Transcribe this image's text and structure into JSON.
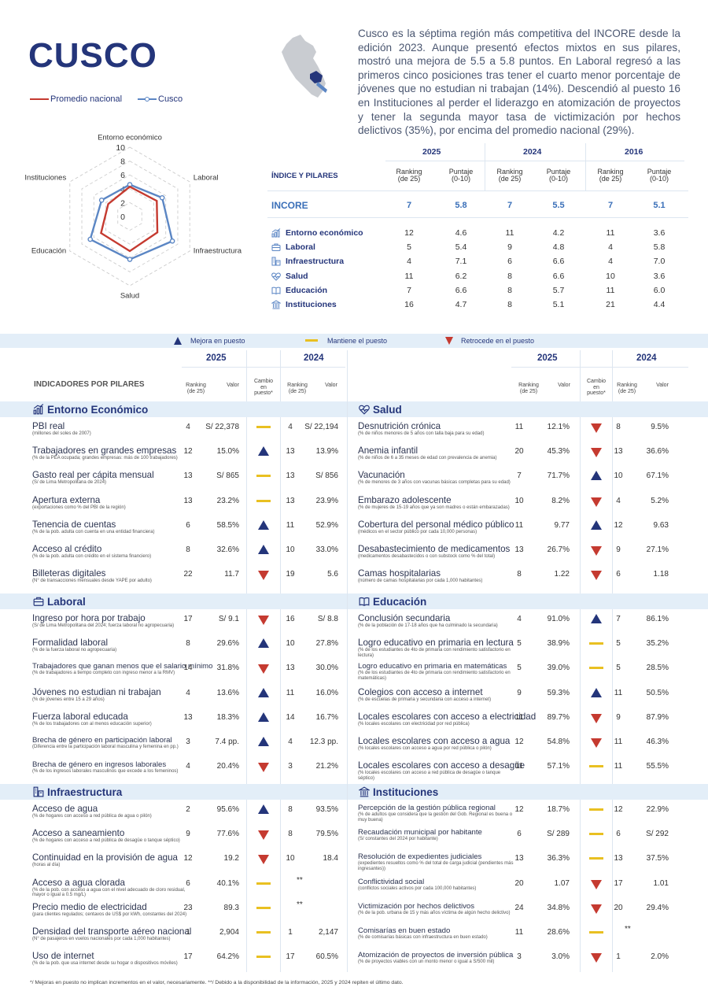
{
  "title": "CUSCO",
  "intro": "Cusco es la séptima región más competitiva del INCORE desde la edición 2023. Aunque presentó efectos mixtos en sus pilares, mostró una mejora de 5.5 a 5.8 puntos. En Laboral regresó a las primeros cinco posiciones tras tener el cuarto menor porcentaje de jóvenes que no estudian ni trabajan (14%). Descendió al puesto 16 en Instituciones al perder el liderazgo en atomización de proyectos y tener la segunda mayor tasa de victimización por hechos delictivos (35%), por encima del promedio nacional (29%).",
  "radar": {
    "legend_national": "Promedio nacional",
    "legend_region": "Cusco",
    "axes": [
      "Entorno económico",
      "Laboral",
      "Infraestructura",
      "Salud",
      "Educación",
      "Instituciones"
    ],
    "ticks": [
      "10",
      "8",
      "6",
      "4",
      "2",
      "0"
    ],
    "national": [
      4.3,
      4.5,
      4.6,
      5.0,
      4.8,
      3.6
    ],
    "region": [
      4.6,
      5.4,
      7.1,
      6.2,
      6.6,
      4.7
    ],
    "colors": {
      "national": "#c53a30",
      "region": "#5b86c4"
    }
  },
  "summary": {
    "header_label": "ÍNDICE Y PILARES",
    "years": [
      "2025",
      "2024",
      "2016"
    ],
    "col_ranking": "Ranking\n(de 25)",
    "col_puntaje": "Puntaje\n(0-10)",
    "incore": {
      "label": "INCORE",
      "values": [
        "7",
        "5.8",
        "7",
        "5.5",
        "7",
        "5.1"
      ]
    },
    "rows": [
      {
        "label": "Entorno económico",
        "icon": "chart-icon",
        "values": [
          "12",
          "4.6",
          "11",
          "4.2",
          "11",
          "3.6"
        ]
      },
      {
        "label": "Laboral",
        "icon": "briefcase-icon",
        "values": [
          "5",
          "5.4",
          "9",
          "4.8",
          "4",
          "5.8"
        ]
      },
      {
        "label": "Infraestructura",
        "icon": "building-icon",
        "values": [
          "4",
          "7.1",
          "6",
          "6.6",
          "4",
          "7.0"
        ]
      },
      {
        "label": "Salud",
        "icon": "heart-pulse-icon",
        "values": [
          "11",
          "6.2",
          "8",
          "6.6",
          "10",
          "3.6"
        ]
      },
      {
        "label": "Educación",
        "icon": "book-icon",
        "values": [
          "7",
          "6.6",
          "8",
          "5.7",
          "11",
          "6.0"
        ]
      },
      {
        "label": "Instituciones",
        "icon": "institution-icon",
        "values": [
          "16",
          "4.7",
          "8",
          "5.1",
          "21",
          "4.4"
        ]
      }
    ]
  },
  "legend": {
    "up": "Mejora en puesto",
    "same": "Mantiene el puesto",
    "down": "Retrocede en el puesto"
  },
  "table_headers": {
    "indicators": "INDICADORES POR PILARES",
    "year_a": "2025",
    "year_b": "2024",
    "ranking": "Ranking\n(de 25)",
    "valor": "Valor",
    "cambio": "Cambio\nen\npuesto*"
  },
  "left_sections": [
    {
      "title": "Entorno Económico",
      "icon": "chart-icon",
      "rows": [
        {
          "name": "PBI real",
          "sub": "(millones del soles de 2007)",
          "r25": "4",
          "v25": "S/ 22,378",
          "chg": "same",
          "r24": "4",
          "v24": "S/ 22,194"
        },
        {
          "name": "Trabajadores en grandes empresas",
          "sub": "(% de la PEA ocupada; grandes empresas: más de 100 trabajadores)",
          "r25": "12",
          "v25": "15.0%",
          "chg": "up",
          "r24": "13",
          "v24": "13.9%"
        },
        {
          "name": "Gasto real per cápita mensual",
          "sub": "(S/ de Lima Metropolitana de 2024)",
          "r25": "13",
          "v25": "S/ 865",
          "chg": "same",
          "r24": "13",
          "v24": "S/ 856"
        },
        {
          "name": "Apertura externa",
          "sub": "(exportaciones como % del PBI de la región)",
          "r25": "13",
          "v25": "23.2%",
          "chg": "same",
          "r24": "13",
          "v24": "23.9%"
        },
        {
          "name": "Tenencia de cuentas",
          "sub": " (% de la pob. adulta con cuenta en una entidad financiera)",
          "r25": "6",
          "v25": "58.5%",
          "chg": "up",
          "r24": "11",
          "v24": "52.9%"
        },
        {
          "name": "Acceso al crédito",
          "sub": "(% de la pob. adulta con crédito en el sistema financiero)",
          "r25": "8",
          "v25": "32.6%",
          "chg": "up",
          "r24": "10",
          "v24": "33.0%"
        },
        {
          "name": "Billeteras digitales",
          "sub": "(N° de transacciones mensuales desde YAPE por adulto)",
          "r25": "22",
          "v25": "11.7",
          "chg": "down",
          "r24": "19",
          "v24": "5.6"
        }
      ]
    },
    {
      "title": "Laboral",
      "icon": "briefcase-icon",
      "rows": [
        {
          "name": "Ingreso por hora por trabajo",
          "sub": "(S/ de Lima Metropolitana del 2024; fuerza laboral no agropecuaria)",
          "r25": "17",
          "v25": "S/ 9.1",
          "chg": "down",
          "r24": "16",
          "v24": "S/ 8.8"
        },
        {
          "name": "Formalidad laboral",
          "sub": "(% de la fuerza laboral no agropecuaria)",
          "r25": "8",
          "v25": "29.6%",
          "chg": "up",
          "r24": "10",
          "v24": "27.8%"
        },
        {
          "name": "Trabajadores que ganan menos que el salario mínimo",
          "sub": "(% de trabajadores a tiempo completo con ingreso menor a la RMV)",
          "r25": "14",
          "v25": "31.8%",
          "chg": "down",
          "r24": "13",
          "v24": "30.0%",
          "small": true
        },
        {
          "name": "Jóvenes no estudian ni trabajan",
          "sub": "(% de jóvenes entre 15 a 29 años)",
          "r25": "4",
          "v25": "13.6%",
          "chg": "up",
          "r24": "11",
          "v24": "16.0%"
        },
        {
          "name": "Fuerza laboral educada",
          "sub": "(% de los trabajadores con al menos educación superior)",
          "r25": "13",
          "v25": "18.3%",
          "chg": "up",
          "r24": "14",
          "v24": "16.7%"
        },
        {
          "name": "Brecha de género en participación laboral",
          "sub": "(Diferencia entre la participación laboral masculina y femenina en pp.)",
          "r25": "3",
          "v25": "7.4 pp.",
          "chg": "up",
          "r24": "4",
          "v24": "12.3 pp.",
          "small": true
        },
        {
          "name": "Brecha de género en ingresos laborales",
          "sub": "(% de los ingresos laborales masculinos que excede a los femeninos)",
          "r25": "4",
          "v25": "20.4%",
          "chg": "down",
          "r24": "3",
          "v24": "21.2%",
          "small": true
        }
      ]
    },
    {
      "title": "Infraestructura",
      "icon": "building-icon",
      "rows": [
        {
          "name": "Acceso de agua",
          "sub": "(% de hogares con acceso a red pública de agua o pilón)",
          "r25": "2",
          "v25": "95.6%",
          "chg": "up",
          "r24": "8",
          "v24": "93.5%"
        },
        {
          "name": "Acceso a saneamiento",
          "sub": "(% de hogares con acceso a red pública de desagüe o tanque séptico)",
          "r25": "9",
          "v25": "77.6%",
          "chg": "down",
          "r24": "8",
          "v24": "79.5%"
        },
        {
          "name": "Continuidad en la provisión de agua",
          "sub": "(horas al día)",
          "r25": "12",
          "v25": "19.2",
          "chg": "down",
          "r24": "10",
          "v24": "18.4"
        },
        {
          "name": "Acceso a agua clorada",
          "sub": "(% de la pob. con acceso a agua con el nivel adecuado de cloro residual, mayor o igual a 0.5 mg/L)",
          "r25": "6",
          "v25": "40.1%",
          "chg": "same",
          "r24": "",
          "v24": "**"
        },
        {
          "name": "Precio medio de electricidad",
          "sub": "(para clientes regulados; centavos de US$ por kWh, constantes del 2024)",
          "r25": "23",
          "v25": "89.3",
          "chg": "same",
          "r24": "",
          "v24": "**"
        },
        {
          "name": "Densidad del transporte aéreo nacional",
          "sub": "(N° de pasajeros en vuelos nacionales por cada 1,000 habitantes)",
          "r25": "1",
          "v25": "2,904",
          "chg": "same",
          "r24": "1",
          "v24": "2,147"
        },
        {
          "name": "Uso de internet",
          "sub": "(% de la pob. que usa internet desde su hogar o dispositivos móviles)",
          "r25": "17",
          "v25": "64.2%",
          "chg": "same",
          "r24": "17",
          "v24": "60.5%"
        }
      ]
    }
  ],
  "right_sections": [
    {
      "title": "Salud",
      "icon": "heart-pulse-icon",
      "rows": [
        {
          "name": "Desnutrición crónica",
          "sub": "(% de niños menores de 5 años con talla baja para su edad)",
          "r25": "11",
          "v25": "12.1%",
          "chg": "down",
          "r24": "8",
          "v24": "9.5%"
        },
        {
          "name": "Anemia infantil",
          "sub": " (% de niños de 6 a 35 meses de edad con prevalencia de anemia)",
          "r25": "20",
          "v25": "45.3%",
          "chg": "down",
          "r24": "13",
          "v24": "36.6%"
        },
        {
          "name": "Vacunación",
          "sub": "(% de menores de 3 años con vacunas básicas completas para su edad)",
          "r25": "7",
          "v25": "71.7%",
          "chg": "up",
          "r24": "10",
          "v24": "67.1%"
        },
        {
          "name": "Embarazo adolescente",
          "sub": "(% de mujeres de 15-19 años que ya son madres o están embarazadas)",
          "r25": "10",
          "v25": "8.2%",
          "chg": "down",
          "r24": "4",
          "v24": "5.2%"
        },
        {
          "name": "Cobertura del personal médico público",
          "sub": "(médicos en el sector público por cada 10,000 personas)",
          "r25": "11",
          "v25": "9.77",
          "chg": "up",
          "r24": "12",
          "v24": "9.63"
        },
        {
          "name": "Desabastecimiento de medicamentos",
          "sub": "(medicamentos desabastecidos o con substock como % del total)",
          "r25": "13",
          "v25": "26.7%",
          "chg": "down",
          "r24": "9",
          "v24": "27.1%"
        },
        {
          "name": "Camas hospitalarias",
          "sub": "(número de camas hospitalarias por cada 1,000 habitantes)",
          "r25": "8",
          "v25": "1.22",
          "chg": "down",
          "r24": "6",
          "v24": "1.18"
        }
      ]
    },
    {
      "title": "Educación",
      "icon": "book-icon",
      "rows": [
        {
          "name": "Conclusión secundaria",
          "sub": "(% de la población de 17-18 años que ha culminado la secundaria)",
          "r25": "4",
          "v25": "91.0%",
          "chg": "up",
          "r24": "7",
          "v24": "86.1%"
        },
        {
          "name": "Logro educativo en primaria en lectura",
          "sub": "(% de los estudiantes de 4to de primaria con rendimiento satisfactorio en lectura)",
          "r25": "5",
          "v25": "38.9%",
          "chg": "same",
          "r24": "5",
          "v24": "35.2%"
        },
        {
          "name": "Logro educativo en primaria en matemáticas",
          "sub": "(% de los estudiantes de 4to de primaria con rendimiento satisfactorio en matemáticas)",
          "r25": "5",
          "v25": "39.0%",
          "chg": "same",
          "r24": "5",
          "v24": "28.5%",
          "small": true
        },
        {
          "name": "Colegios con acceso a internet",
          "sub": " (% de escuelas de primaria y secundaria con acceso a internet)",
          "r25": "9",
          "v25": "59.3%",
          "chg": "up",
          "r24": "11",
          "v24": "50.5%"
        },
        {
          "name": "Locales escolares con acceso a electricidad",
          "sub": "(% locales escolares con electricidad por red pública)",
          "r25": "11",
          "v25": "89.7%",
          "chg": "down",
          "r24": "9",
          "v24": "87.9%"
        },
        {
          "name": "Locales escolares con acceso a agua",
          "sub": "(% locales escolares con acceso a agua por red pública o pilón)",
          "r25": "12",
          "v25": "54.8%",
          "chg": "down",
          "r24": "11",
          "v24": "46.3%"
        },
        {
          "name": "Locales escolares con acceso a desagüe",
          "sub": "(% locales escolares con acceso a red pública de desagüe o tanque séptico)",
          "r25": "11",
          "v25": "57.1%",
          "chg": "same",
          "r24": "11",
          "v24": "55.5%"
        }
      ]
    },
    {
      "title": "Instituciones",
      "icon": "institution-icon",
      "rows": [
        {
          "name": "Percepción de la gestión pública regional",
          "sub": "(% de adultos que considera que la gestión del Gob. Regional es buena o muy buena)",
          "r25": "12",
          "v25": "18.7%",
          "chg": "same",
          "r24": "12",
          "v24": "22.9%",
          "small": true
        },
        {
          "name": "Recaudación municipal por habitante",
          "sub": "(S/ constantes del 2024 por habitante)",
          "r25": "6",
          "v25": "S/ 289",
          "chg": "same",
          "r24": "6",
          "v24": "S/ 292",
          "small": true
        },
        {
          "name": "Resolución de expedientes judiciales",
          "sub": "(expedientes resueltos como % del total de carga judicial (pendientes más ingresantes))",
          "r25": "13",
          "v25": "36.3%",
          "chg": "same",
          "r24": "13",
          "v24": "37.5%",
          "small": true
        },
        {
          "name": "Conflictividad social",
          "sub": "(conflictos sociales activos por cada 100,000 habitantes)",
          "r25": "20",
          "v25": "1.07",
          "chg": "down",
          "r24": "17",
          "v24": "1.01",
          "small": true
        },
        {
          "name": "Victimización por hechos delictivos",
          "sub": "(% de la pob. urbana de 15 y más años víctima de algún hecho delictivo)",
          "r25": "24",
          "v25": "34.8%",
          "chg": "down",
          "r24": "20",
          "v24": "29.4%",
          "small": true
        },
        {
          "name": "Comisarías en buen estado",
          "sub": " (% de comisarías básicas con infraestructura en buen estado)",
          "r25": "11",
          "v25": "28.6%",
          "chg": "same",
          "r24": "",
          "v24": "**",
          "small": true
        },
        {
          "name": "Atomización de proyectos de inversión pública",
          "sub": "(% de proyectos viables con un monto menor o igual a S/500 mil)",
          "r25": "3",
          "v25": "3.0%",
          "chg": "down",
          "r24": "1",
          "v24": "2.0%",
          "small": true
        }
      ]
    }
  ],
  "footnote": "*/ Mejoras en puesto no implican incrementos en el valor, necesariamente. **/ Debido a la disponibilidad de la información, 2025 y 2024 repiten el último dato."
}
